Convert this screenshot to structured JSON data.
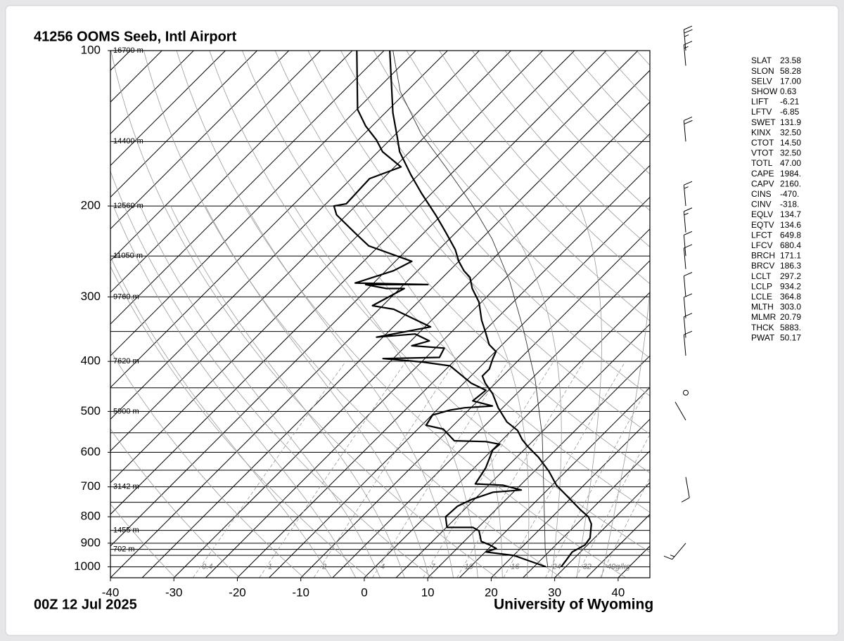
{
  "title": "41256 OOMS Seeb, Intl Airport",
  "footer": {
    "time": "00Z 12 Jul 2025",
    "credit": "University of Wyoming"
  },
  "indices": [
    [
      "SLAT",
      "23.58"
    ],
    [
      "SLON",
      "58.28"
    ],
    [
      "SELV",
      "17.00"
    ],
    [
      "SHOW",
      "0.63"
    ],
    [
      "LIFT",
      "-6.21"
    ],
    [
      "LFTV",
      "-6.85"
    ],
    [
      "SWET",
      "131.9"
    ],
    [
      "KINX",
      "32.50"
    ],
    [
      "CTOT",
      "14.50"
    ],
    [
      "VTOT",
      "32.50"
    ],
    [
      "TOTL",
      "47.00"
    ],
    [
      "CAPE",
      "1984."
    ],
    [
      "CAPV",
      "2160."
    ],
    [
      "CINS",
      "-470."
    ],
    [
      "CINV",
      "-318."
    ],
    [
      "EQLV",
      "134.7"
    ],
    [
      "EQTV",
      "134.6"
    ],
    [
      "LFCT",
      "649.8"
    ],
    [
      "LFCV",
      "680.4"
    ],
    [
      "BRCH",
      "171.1"
    ],
    [
      "BRCV",
      "186.3"
    ],
    [
      "LCLT",
      "297.2"
    ],
    [
      "LCLP",
      "934.2"
    ],
    [
      "LCLE",
      "364.8"
    ],
    [
      "MLTH",
      "303.0"
    ],
    [
      "MLMR",
      "20.79"
    ],
    [
      "THCK",
      "5883."
    ],
    [
      "PWAT",
      "50.17"
    ]
  ],
  "chart_data": {
    "type": "skewt",
    "xlim": [
      -40,
      45
    ],
    "ylim": [
      1050,
      100
    ],
    "log_y": true,
    "xticks": [
      -40,
      -30,
      -20,
      -10,
      0,
      10,
      20,
      30,
      40
    ],
    "yticks": [
      100,
      200,
      300,
      400,
      500,
      600,
      700,
      800,
      900,
      1000
    ],
    "pressure_lines": [
      100,
      150,
      200,
      250,
      300,
      350,
      400,
      450,
      500,
      550,
      600,
      650,
      700,
      750,
      800,
      850,
      900,
      925,
      950,
      1000
    ],
    "height_labels": [
      {
        "pressure": 100,
        "label": "16700 m"
      },
      {
        "pressure": 150,
        "label": "14400 m"
      },
      {
        "pressure": 200,
        "label": "12560 m"
      },
      {
        "pressure": 250,
        "label": "11050 m"
      },
      {
        "pressure": 300,
        "label": "9760 m"
      },
      {
        "pressure": 400,
        "label": "7620 m"
      },
      {
        "pressure": 500,
        "label": "5900 m"
      },
      {
        "pressure": 700,
        "label": "3142 m"
      },
      {
        "pressure": 850,
        "label": "1455 m"
      },
      {
        "pressure": 925,
        "label": "702 m"
      }
    ],
    "mixing_ratio_labels": [
      0.4,
      1,
      2,
      4,
      7,
      10,
      16,
      24,
      32,
      {
        "value": 40,
        "label": "40g/kg"
      }
    ],
    "series": [
      {
        "color": "#000000",
        "width": 2.2,
        "pressure": [
          1000,
          966,
          936,
          907,
          879,
          826,
          800,
          776,
          695,
          653,
          613,
          585,
          567,
          544,
          524,
          492,
          462,
          441,
          427,
          414,
          395,
          383,
          371,
          349,
          333,
          307,
          289,
          275,
          267,
          256,
          243,
          225,
          208,
          189,
          174,
          157,
          147,
          132,
          100
        ],
        "values": [
          29.3,
          29.0,
          28.7,
          29.6,
          29.3,
          27.3,
          25.7,
          23.4,
          15.7,
          12.3,
          8.4,
          5.1,
          3.1,
          0.9,
          -2.1,
          -5.7,
          -8.8,
          -11.6,
          -13.2,
          -13.2,
          -14.3,
          -14.9,
          -17.1,
          -19.9,
          -22.1,
          -25.4,
          -28.6,
          -30.7,
          -32.7,
          -35,
          -37.4,
          -41.6,
          -46,
          -51.6,
          -56.2,
          -61.6,
          -64.3,
          -68.8,
          -79.1
        ]
      },
      {
        "color": "#000000",
        "width": 2.2,
        "pressure": [
          1000,
          951,
          936,
          922,
          907,
          893,
          852,
          839,
          839,
          800,
          763,
          740,
          717,
          710,
          695,
          691,
          643,
          594,
          579,
          572,
          570,
          541,
          532,
          508,
          497,
          492,
          488,
          477,
          455,
          441,
          408,
          401,
          395,
          393,
          377,
          373,
          365,
          354,
          359,
          343,
          317,
          312,
          289,
          289,
          284,
          284,
          282,
          267,
          256,
          239,
          225,
          208,
          200,
          198,
          177,
          168,
          157,
          149,
          140,
          130,
          100
        ],
        "values": [
          26.9,
          20.1,
          15.1,
          16.2,
          14.6,
          12.7,
          10.7,
          9.2,
          5.1,
          3.2,
          3.4,
          4.6,
          6.8,
          10.9,
          7.3,
          2.7,
          1.8,
          0.1,
          0.3,
          -2.3,
          -7.4,
          -11,
          -14.3,
          -14.9,
          -12.9,
          -11,
          -6.9,
          -10.8,
          -10.4,
          -13.8,
          -19.9,
          -24.9,
          -31.6,
          -22.9,
          -23.6,
          -29.1,
          -27.1,
          -30.4,
          -36,
          -29.1,
          -37.7,
          -41.6,
          -39.3,
          -42.1,
          -46,
          -36.2,
          -47.9,
          -43.8,
          -42.4,
          -51.6,
          -56,
          -61.6,
          -63.4,
          -61.8,
          -62.1,
          -59,
          -64.3,
          -67.1,
          -71,
          -74.9,
          -84.3
        ]
      },
      {
        "color": "#333333",
        "width": 0.9,
        "pressure": [
          1000,
          922,
          717,
          558,
          434,
          349,
          280,
          232,
          198,
          169,
          145,
          120,
          100
        ],
        "values": [
          27.2,
          23.9,
          14.8,
          5.7,
          -4.3,
          -13.8,
          -23.8,
          -33.2,
          -42.1,
          -51.6,
          -61,
          -71,
          -78.6
        ]
      }
    ],
    "wind_barbs": {
      "pressure": [
        100,
        107,
        150,
        200,
        225,
        250,
        265,
        300,
        330,
        360,
        390,
        460,
        520,
        670,
        900
      ],
      "direction": [
        355,
        355,
        355,
        355,
        355,
        355,
        355,
        355,
        355,
        355,
        355,
        0,
        330,
        170,
        220
      ],
      "speed": [
        25,
        15,
        20,
        15,
        15,
        10,
        10,
        10,
        10,
        10,
        10,
        0,
        2,
        10,
        15
      ]
    }
  }
}
